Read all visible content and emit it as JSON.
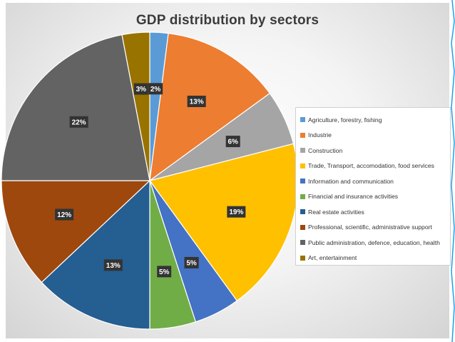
{
  "chart_data": {
    "type": "pie",
    "title": "GDP distribution by sectors",
    "legend_position": "right",
    "slices": [
      {
        "name": "Agriculture, forestry, fishing",
        "value": 2,
        "label": "2%",
        "color": "#5b9bd5"
      },
      {
        "name": "Industrie",
        "value": 13,
        "label": "13%",
        "color": "#ed7d31"
      },
      {
        "name": "Construction",
        "value": 6,
        "label": "6%",
        "color": "#a5a5a5"
      },
      {
        "name": "Trade, Transport, accomodation, food services",
        "value": 19,
        "label": "19%",
        "color": "#ffc000"
      },
      {
        "name": "Information and communication",
        "value": 5,
        "label": "5%",
        "color": "#4472c4"
      },
      {
        "name": "Financial and insurance activities",
        "value": 5,
        "label": "5%",
        "color": "#70ad47"
      },
      {
        "name": "Real estate activities",
        "value": 13,
        "label": "13%",
        "color": "#255e91"
      },
      {
        "name": "Professional, scientific, administrative support",
        "value": 12,
        "label": "12%",
        "color": "#9e480e"
      },
      {
        "name": "Public administration, defence, education, health",
        "value": 22,
        "label": "22%",
        "color": "#636363"
      },
      {
        "name": "Art, entertainment",
        "value": 3,
        "label": "3%",
        "color": "#997300"
      }
    ]
  }
}
